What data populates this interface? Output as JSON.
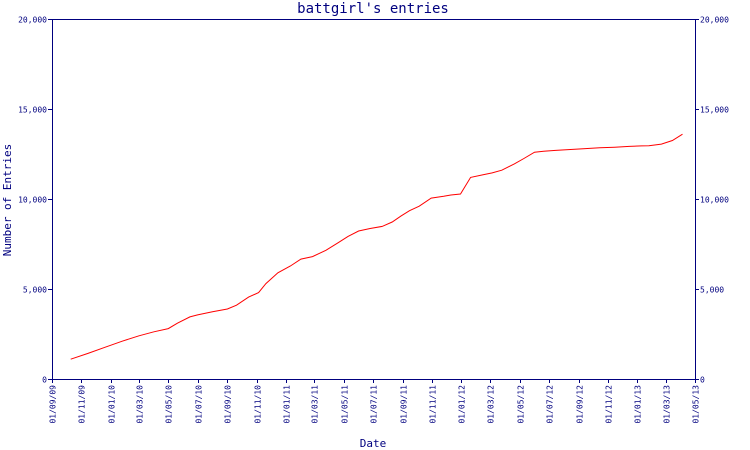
{
  "chart_data": {
    "type": "line",
    "title": "battgirl's entries",
    "xlabel": "Date",
    "ylabel": "Number of Entries",
    "ylim": [
      0,
      20000
    ],
    "xlim": [
      "2009-09-01",
      "2013-05-01"
    ],
    "y_ticks": [
      0,
      5000,
      10000,
      15000,
      20000
    ],
    "y_tick_labels": [
      "0",
      "5,000",
      "10,000",
      "15,000",
      "20,000"
    ],
    "x_ticks": [
      "2009-09-01",
      "2009-11-01",
      "2010-01-01",
      "2010-03-01",
      "2010-05-01",
      "2010-07-01",
      "2010-09-01",
      "2010-11-01",
      "2011-01-01",
      "2011-03-01",
      "2011-05-01",
      "2011-07-01",
      "2011-09-01",
      "2011-11-01",
      "2012-01-01",
      "2012-03-01",
      "2012-05-01",
      "2012-07-01",
      "2012-09-01",
      "2012-11-01",
      "2013-01-01",
      "2013-03-01",
      "2013-05-01"
    ],
    "x_tick_labels": [
      "01/09/09",
      "01/11/09",
      "01/01/10",
      "01/03/10",
      "01/05/10",
      "01/07/10",
      "01/09/10",
      "01/11/10",
      "01/01/11",
      "01/03/11",
      "01/05/11",
      "01/07/11",
      "01/09/11",
      "01/11/11",
      "01/01/12",
      "01/03/12",
      "01/05/12",
      "01/07/12",
      "01/09/12",
      "01/11/12",
      "01/01/13",
      "01/03/13",
      "01/05/13"
    ],
    "grid": false,
    "colors": {
      "axes": "#00007f",
      "series": "#ff0000",
      "background": "#ffffff"
    },
    "series": [
      {
        "x": [
          "2009-10-10",
          "2009-11-15",
          "2009-12-20",
          "2010-01-25",
          "2010-03-01",
          "2010-04-01",
          "2010-05-01",
          "2010-05-20",
          "2010-06-15",
          "2010-07-01",
          "2010-08-01",
          "2010-09-01",
          "2010-09-20",
          "2010-10-15",
          "2010-11-05",
          "2010-11-20",
          "2010-12-15",
          "2011-01-10",
          "2011-02-01",
          "2011-02-25",
          "2011-03-25",
          "2011-04-20",
          "2011-05-10",
          "2011-06-01",
          "2011-06-25",
          "2011-07-20",
          "2011-08-10",
          "2011-08-28",
          "2011-09-15",
          "2011-10-05",
          "2011-10-30",
          "2011-11-25",
          "2011-12-10",
          "2011-12-30",
          "2012-01-20",
          "2012-02-15",
          "2012-03-05",
          "2012-03-25",
          "2012-04-20",
          "2012-05-10",
          "2012-06-01",
          "2012-06-20",
          "2012-07-15",
          "2012-08-15",
          "2012-09-15",
          "2012-10-15",
          "2012-11-15",
          "2012-12-15",
          "2013-01-10",
          "2013-01-25",
          "2013-02-20",
          "2013-03-15",
          "2013-04-05"
        ],
        "y": [
          1100,
          1420,
          1760,
          2100,
          2400,
          2620,
          2800,
          3100,
          3450,
          3560,
          3740,
          3890,
          4100,
          4550,
          4800,
          5300,
          5900,
          6280,
          6660,
          6800,
          7150,
          7580,
          7920,
          8220,
          8360,
          8480,
          8720,
          9050,
          9350,
          9600,
          10050,
          10150,
          10220,
          10280,
          11200,
          11350,
          11450,
          11600,
          11950,
          12250,
          12600,
          12650,
          12700,
          12750,
          12800,
          12850,
          12880,
          12920,
          12950,
          12960,
          13050,
          13250,
          13600
        ]
      }
    ]
  }
}
